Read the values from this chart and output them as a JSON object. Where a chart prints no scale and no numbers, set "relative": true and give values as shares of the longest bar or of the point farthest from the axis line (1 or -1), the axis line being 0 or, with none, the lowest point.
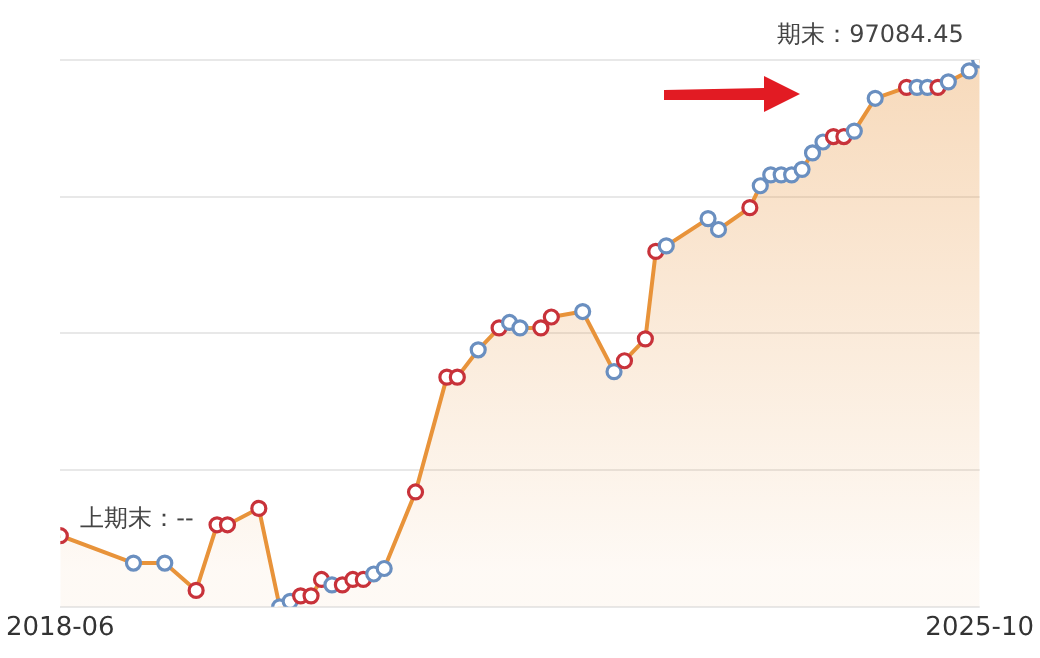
{
  "chart_data": {
    "type": "area",
    "relative": true,
    "xlim": [
      "2018-06",
      "2025-10"
    ],
    "xticks": [
      "2018-06",
      "2025-10"
    ],
    "grid": "y",
    "legend": false,
    "marker": "circle",
    "annotations": [
      "上期末：--",
      "期末：97084.45"
    ],
    "series": [
      {
        "color": "#e8933a",
        "x": [
          "2018-06",
          "2019-01",
          "2019-04",
          "2019-07",
          "2019-09",
          "2019-10",
          "2020-01",
          "2020-03",
          "2020-04",
          "2020-05",
          "2020-06",
          "2020-07",
          "2020-08",
          "2020-09",
          "2020-10",
          "2020-11",
          "2020-12",
          "2021-01",
          "2021-04",
          "2021-07",
          "2021-08",
          "2021-10",
          "2021-12",
          "2022-01",
          "2022-02",
          "2022-04",
          "2022-05",
          "2022-08",
          "2022-11",
          "2022-12",
          "2023-02",
          "2023-03",
          "2023-04",
          "2023-08",
          "2023-09",
          "2023-12",
          "2024-01",
          "2024-02",
          "2024-03",
          "2024-04",
          "2024-05",
          "2024-06",
          "2024-07",
          "2024-08",
          "2024-09",
          "2024-10",
          "2024-12",
          "2025-03",
          "2025-04",
          "2025-05",
          "2025-06",
          "2025-07",
          "2025-09",
          "2025-10"
        ],
        "values": [
          0.13,
          0.08,
          0.08,
          0.03,
          0.15,
          0.15,
          0.18,
          0.0,
          0.01,
          0.02,
          0.02,
          0.05,
          0.04,
          0.04,
          0.05,
          0.05,
          0.06,
          0.07,
          0.21,
          0.42,
          0.42,
          0.47,
          0.51,
          0.52,
          0.51,
          0.51,
          0.53,
          0.54,
          0.43,
          0.45,
          0.49,
          0.65,
          0.66,
          0.71,
          0.69,
          0.73,
          0.77,
          0.79,
          0.79,
          0.79,
          0.8,
          0.83,
          0.85,
          0.86,
          0.86,
          0.87,
          0.93,
          0.95,
          0.95,
          0.95,
          0.95,
          0.96,
          0.98,
          1
        ],
        "colors": [
          "#c8323a",
          "#6a8fc0",
          "#6a8fc0",
          "#c8323a",
          "#c8323a",
          "#c8323a",
          "#c8323a",
          "#6a8fc0",
          "#6a8fc0",
          "#c8323a",
          "#c8323a",
          "#c8323a",
          "#6a8fc0",
          "#c8323a",
          "#c8323a",
          "#c8323a",
          "#6a8fc0",
          "#6a8fc0",
          "#c8323a",
          "#c8323a",
          "#c8323a",
          "#6a8fc0",
          "#c8323a",
          "#6a8fc0",
          "#6a8fc0",
          "#c8323a",
          "#c8323a",
          "#6a8fc0",
          "#6a8fc0",
          "#c8323a",
          "#c8323a",
          "#c8323a",
          "#6a8fc0",
          "#6a8fc0",
          "#6a8fc0",
          "#c8323a",
          "#6a8fc0",
          "#6a8fc0",
          "#6a8fc0",
          "#6a8fc0",
          "#6a8fc0",
          "#6a8fc0",
          "#6a8fc0",
          "#c8323a",
          "#c8323a",
          "#6a8fc0",
          "#6a8fc0",
          "#c8323a",
          "#6a8fc0",
          "#6a8fc0",
          "#c8323a",
          "#6a8fc0",
          "#6a8fc0",
          "#6a8fc0"
        ]
      }
    ]
  }
}
